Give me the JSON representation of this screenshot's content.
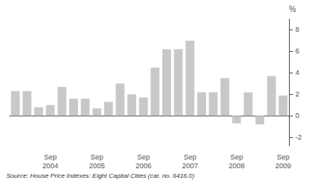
{
  "chart_data": {
    "type": "bar",
    "categories": [
      null,
      null,
      null,
      "Sep\n2004",
      null,
      null,
      null,
      "Sep\n2005",
      null,
      null,
      null,
      "Sep\n2006",
      null,
      null,
      null,
      "Sep\n2007",
      null,
      null,
      null,
      "Sep\n2008",
      null,
      null,
      null,
      "Sep\n2009"
    ],
    "values": [
      2.3,
      2.3,
      0.8,
      1.0,
      2.7,
      1.6,
      1.6,
      0.7,
      1.3,
      3.0,
      2.0,
      1.7,
      4.5,
      6.2,
      6.2,
      7.0,
      2.2,
      2.2,
      3.5,
      -0.7,
      2.2,
      -0.8,
      3.7,
      1.9
    ],
    "color": "#c8c8c8",
    "ylim": [
      -2.8,
      9.0
    ],
    "yticks": [
      -2,
      0,
      2,
      4,
      6,
      8
    ],
    "ylabel": "%",
    "source": "Source: House Price Indexes: Eight Capital Cities (cat. no. 6416.0)",
    "grid": false
  }
}
